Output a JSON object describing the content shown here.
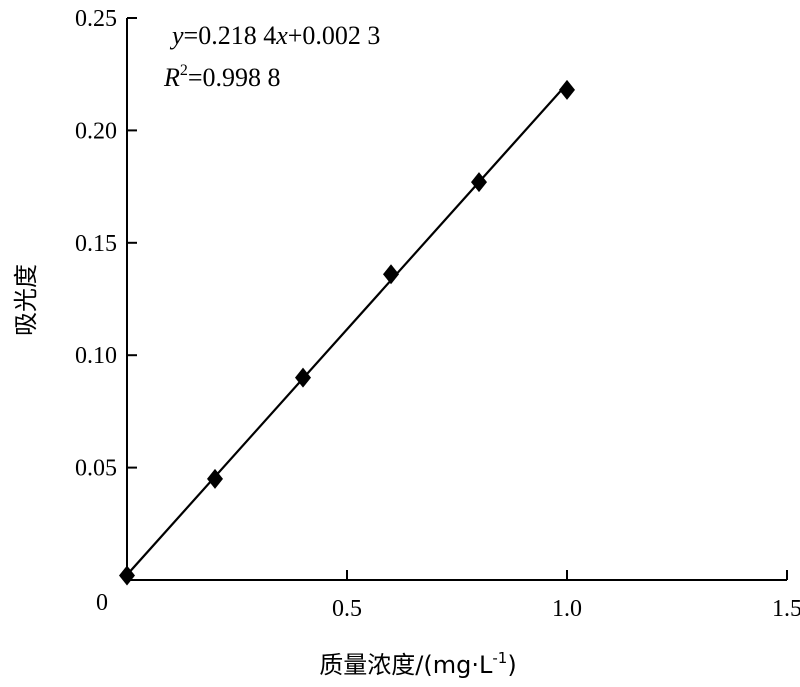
{
  "chart_data": {
    "type": "scatter",
    "xlabel_main": "质量浓度/(mg·L",
    "xlabel_sup": "-1",
    "xlabel_close": ")",
    "ylabel": "吸光度",
    "xlim": [
      0,
      1.5
    ],
    "ylim": [
      0,
      0.25
    ],
    "x_ticks": [
      0,
      0.5,
      1.0,
      1.5
    ],
    "x_tick_labels": [
      "0",
      "0.5",
      "1.0",
      "1.5"
    ],
    "y_ticks": [
      0,
      0.05,
      0.1,
      0.15,
      0.2,
      0.25
    ],
    "y_tick_labels": [
      "0",
      "0.05",
      "0.10",
      "0.15",
      "0.20",
      "0.25"
    ],
    "grid": false,
    "series": [
      {
        "x": [
          0,
          0.2,
          0.4,
          0.6,
          0.8,
          1.0
        ],
        "y": [
          0.002,
          0.045,
          0.09,
          0.136,
          0.177,
          0.218
        ],
        "marker": "diamond",
        "color": "#000000"
      }
    ],
    "fit": {
      "slope": 0.2184,
      "intercept": 0.0023,
      "color": "#000000"
    },
    "annotations": {
      "eq_y": "y",
      "eq_mid": "=0.218 4",
      "eq_x": "x",
      "eq_rest": "+0.002 3",
      "r_R": "R",
      "r_sup": "2",
      "r_rest": "=0.998 8"
    }
  }
}
